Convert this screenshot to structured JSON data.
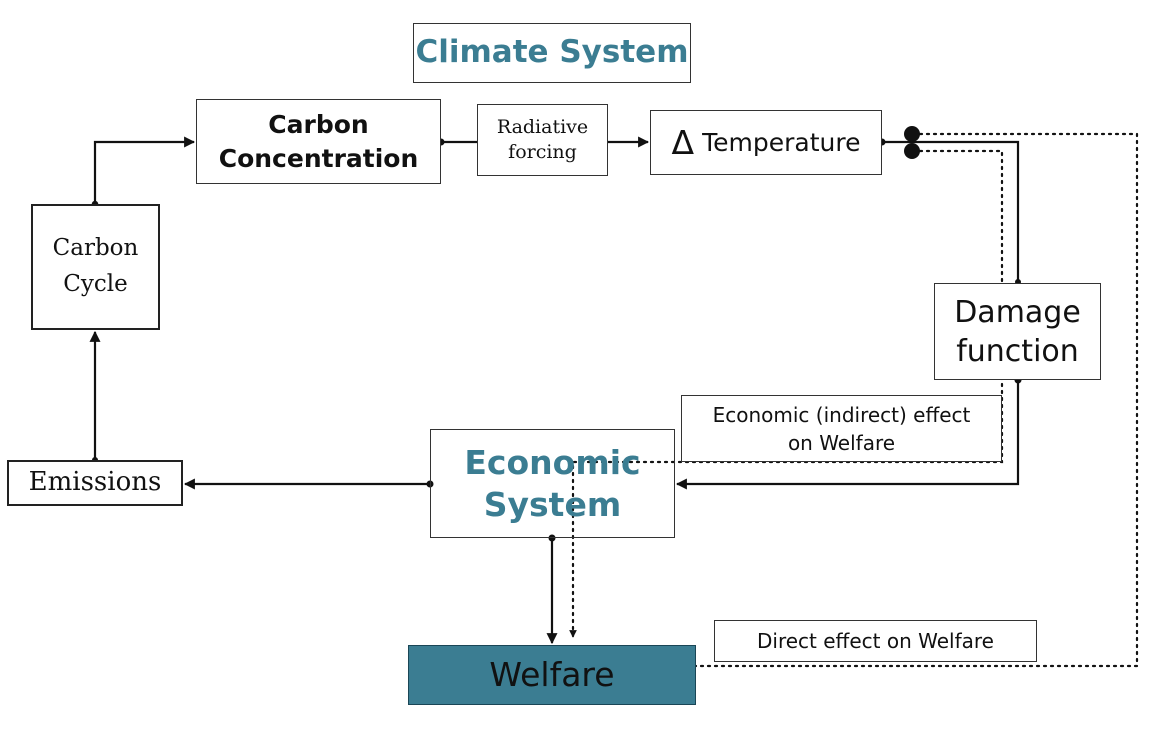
{
  "title": "Climate System",
  "nodes": {
    "carbon_concentration": [
      "Carbon",
      "Concentration"
    ],
    "radiative_forcing": [
      "Radiative",
      "forcing"
    ],
    "temperature_symbol": "Δ",
    "temperature_label": "Temperature",
    "carbon_cycle": [
      "Carbon",
      "Cycle"
    ],
    "damage_function": [
      "Damage",
      "function"
    ],
    "economic_effect": [
      "Economic (indirect) effect",
      "on Welfare"
    ],
    "economic_system": [
      "Economic",
      "System"
    ],
    "emissions": "Emissions",
    "direct_effect": "Direct effect on Welfare",
    "welfare": "Welfare"
  },
  "colors": {
    "accent_text": "#3b7d92",
    "welfare_fill": "#3b7d92",
    "line": "#111111"
  }
}
